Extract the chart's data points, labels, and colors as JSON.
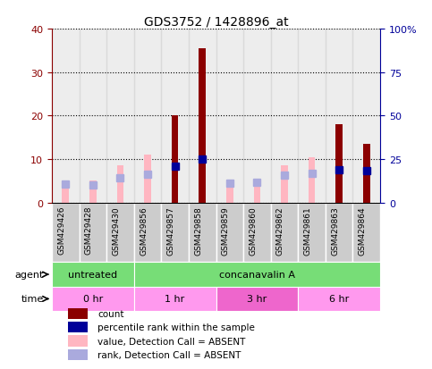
{
  "title": "GDS3752 / 1428896_at",
  "samples": [
    "GSM429426",
    "GSM429428",
    "GSM429430",
    "GSM429856",
    "GSM429857",
    "GSM429858",
    "GSM429859",
    "GSM429860",
    "GSM429862",
    "GSM429861",
    "GSM429863",
    "GSM429864"
  ],
  "count_values": [
    null,
    null,
    null,
    null,
    20.0,
    35.5,
    null,
    null,
    null,
    null,
    18.0,
    13.5
  ],
  "count_absent_values": [
    5.0,
    5.0,
    8.5,
    11.0,
    null,
    null,
    5.0,
    5.0,
    8.5,
    10.5,
    null,
    null
  ],
  "percentile_rank": [
    null,
    null,
    null,
    null,
    21.0,
    25.0,
    null,
    null,
    null,
    null,
    19.0,
    18.5
  ],
  "rank_absent_values": [
    10.5,
    10.0,
    14.0,
    16.0,
    null,
    null,
    11.0,
    11.5,
    15.5,
    16.5,
    null,
    null
  ],
  "ylim_left": [
    0,
    40
  ],
  "ylim_right": [
    0,
    100
  ],
  "yticks_left": [
    0,
    10,
    20,
    30,
    40
  ],
  "yticks_right": [
    0,
    25,
    50,
    75,
    100
  ],
  "ytick_labels_right": [
    "0",
    "25",
    "50",
    "75",
    "100%"
  ],
  "color_count": "#8B0000",
  "color_count_absent": "#FFB6C1",
  "color_percentile": "#000099",
  "color_rank_absent": "#AAAADD",
  "agent_groups": [
    {
      "label": "untreated",
      "start": 0,
      "end": 3,
      "color": "#77DD77"
    },
    {
      "label": "concanavalin A",
      "start": 3,
      "end": 12,
      "color": "#77DD77"
    }
  ],
  "time_groups": [
    {
      "label": "0 hr",
      "start": 0,
      "end": 3,
      "color": "#FF99EE"
    },
    {
      "label": "1 hr",
      "start": 3,
      "end": 6,
      "color": "#FF99EE"
    },
    {
      "label": "3 hr",
      "start": 6,
      "end": 9,
      "color": "#EE66CC"
    },
    {
      "label": "6 hr",
      "start": 9,
      "end": 12,
      "color": "#FF99EE"
    }
  ],
  "agent_label": "agent",
  "time_label": "time",
  "legend_entries": [
    {
      "label": "count",
      "color": "#8B0000"
    },
    {
      "label": "percentile rank within the sample",
      "color": "#000099"
    },
    {
      "label": "value, Detection Call = ABSENT",
      "color": "#FFB6C1"
    },
    {
      "label": "rank, Detection Call = ABSENT",
      "color": "#AAAADD"
    }
  ],
  "bar_width": 0.25,
  "marker_size": 6,
  "col_bg_color": "#CCCCCC"
}
